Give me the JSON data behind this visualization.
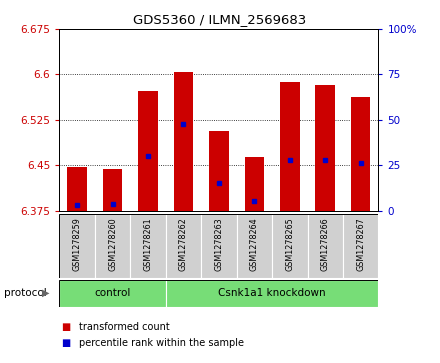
{
  "title": "GDS5360 / ILMN_2569683",
  "samples": [
    "GSM1278259",
    "GSM1278260",
    "GSM1278261",
    "GSM1278262",
    "GSM1278263",
    "GSM1278264",
    "GSM1278265",
    "GSM1278266",
    "GSM1278267"
  ],
  "transformed_counts": [
    6.447,
    6.444,
    6.572,
    6.604,
    6.507,
    6.464,
    6.587,
    6.583,
    6.562
  ],
  "percentile_ranks": [
    3.0,
    3.5,
    30.0,
    47.5,
    15.0,
    5.0,
    28.0,
    28.0,
    26.0
  ],
  "y_min": 6.375,
  "y_max": 6.675,
  "y_ticks": [
    6.375,
    6.45,
    6.525,
    6.6,
    6.675
  ],
  "y2_ticks": [
    0,
    25,
    50,
    75,
    100
  ],
  "groups": [
    {
      "label": "control",
      "start": 0,
      "end": 2
    },
    {
      "label": "Csnk1a1 knockdown",
      "start": 3,
      "end": 8
    }
  ],
  "bar_color": "#CC0000",
  "blue_marker_color": "#0000CC",
  "title_color": "#000000",
  "left_axis_color": "#CC0000",
  "right_axis_color": "#0000CC",
  "grid_color": "#000000",
  "group_color": "#77DD77",
  "sample_box_color": "#D0D0D0",
  "legend_red_label": "transformed count",
  "legend_blue_label": "percentile rank within the sample"
}
